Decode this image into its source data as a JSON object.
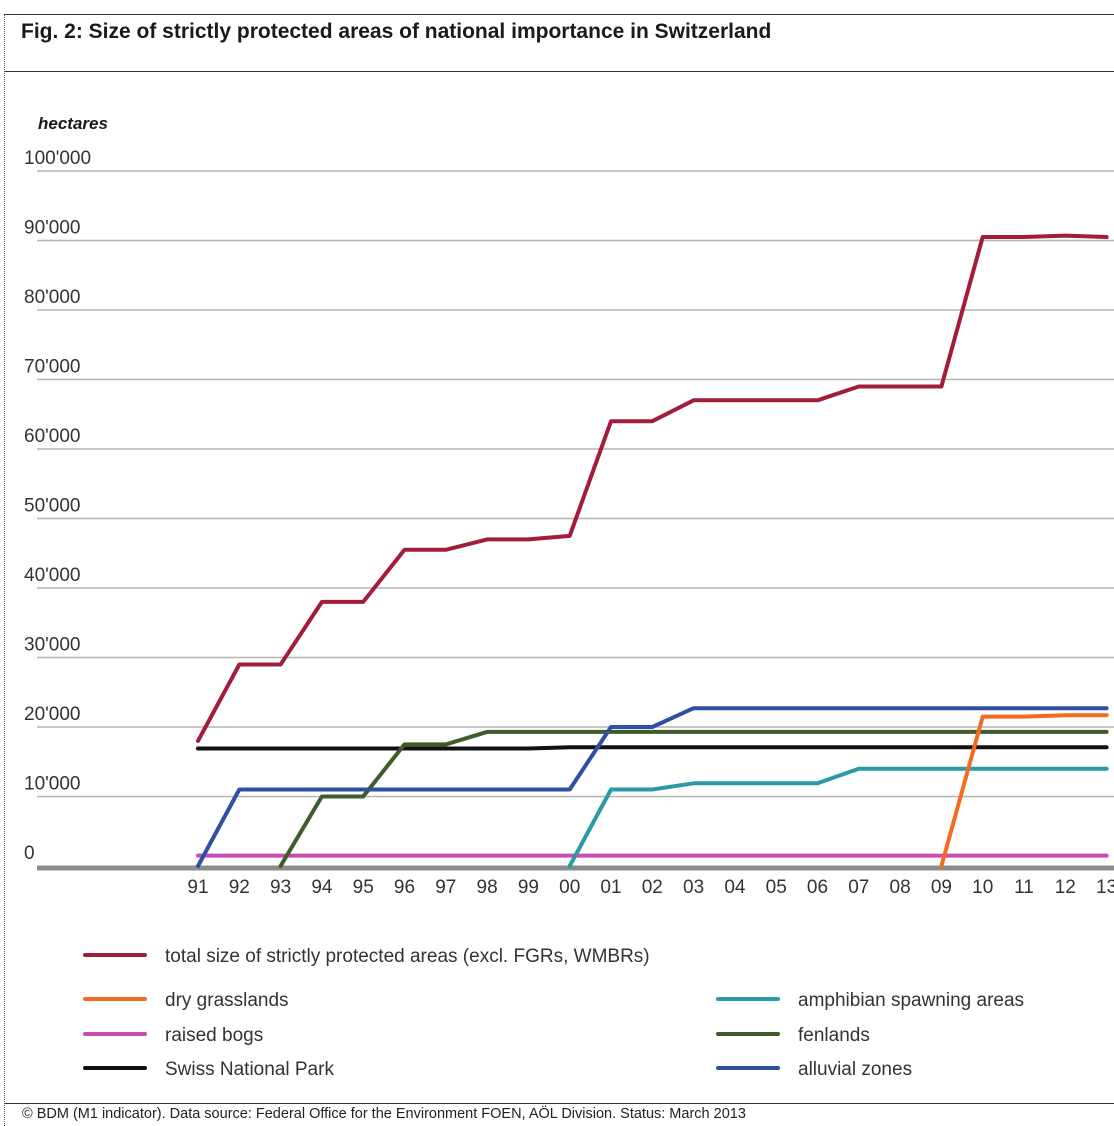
{
  "title": "Fig. 2: Size of strictly protected areas of national importance in Switzerland",
  "footer": "© BDM (M1 indicator). Data source: Federal Office for the Environment FOEN, AÖL Division. Status: March 2013",
  "chart_data": {
    "type": "line",
    "ylabel": "hectares",
    "xlabel": "",
    "ylim": [
      0,
      100000
    ],
    "yticks": [
      "0",
      "10'000",
      "20'000",
      "30'000",
      "40'000",
      "50'000",
      "60'000",
      "70'000",
      "80'000",
      "90'000",
      "100'000"
    ],
    "grid": true,
    "legend_position": "bottom",
    "x": [
      "91",
      "92",
      "93",
      "94",
      "95",
      "96",
      "97",
      "98",
      "99",
      "00",
      "01",
      "02",
      "03",
      "04",
      "05",
      "06",
      "07",
      "08",
      "09",
      "10",
      "11",
      "12",
      "13"
    ],
    "series": [
      {
        "name": "total size of strictly protected areas (excl. FGRs, WMBRs)",
        "color": "#a31c3a",
        "values": [
          18000,
          29000,
          29000,
          38000,
          38000,
          45500,
          45500,
          47000,
          47000,
          47500,
          64000,
          64000,
          67000,
          67000,
          67000,
          67000,
          69000,
          69000,
          69000,
          90500,
          90500,
          90700,
          90500
        ]
      },
      {
        "name": "dry grasslands",
        "color": "#f26b21",
        "values": [
          null,
          null,
          null,
          null,
          null,
          null,
          null,
          null,
          null,
          null,
          null,
          null,
          null,
          null,
          null,
          null,
          null,
          null,
          0,
          21500,
          21500,
          21700,
          21700
        ]
      },
      {
        "name": "raised bogs",
        "color": "#c94bb5",
        "values": [
          1500,
          1500,
          1500,
          1500,
          1500,
          1500,
          1500,
          1500,
          1500,
          1500,
          1500,
          1500,
          1500,
          1500,
          1500,
          1500,
          1500,
          1500,
          1500,
          1500,
          1500,
          1500,
          1500
        ]
      },
      {
        "name": "Swiss National Park",
        "color": "#111111",
        "values": [
          16900,
          16900,
          16900,
          16900,
          16900,
          16900,
          16900,
          16900,
          16900,
          17100,
          17100,
          17100,
          17100,
          17100,
          17100,
          17100,
          17100,
          17100,
          17100,
          17100,
          17100,
          17100,
          17100
        ]
      },
      {
        "name": "amphibian spawning areas",
        "color": "#2a9aa6",
        "values": [
          null,
          null,
          null,
          null,
          null,
          null,
          null,
          null,
          null,
          0,
          11000,
          11000,
          11900,
          11900,
          11900,
          11900,
          14000,
          14000,
          14000,
          14000,
          14000,
          14000,
          14000
        ]
      },
      {
        "name": "fenlands",
        "color": "#3d5c2a",
        "values": [
          null,
          null,
          0,
          10000,
          10000,
          17500,
          17500,
          19300,
          19300,
          19300,
          19300,
          19300,
          19300,
          19300,
          19300,
          19300,
          19300,
          19300,
          19300,
          19300,
          19300,
          19300,
          19300
        ]
      },
      {
        "name": "alluvial zones",
        "color": "#2f4f9f",
        "values": [
          0,
          11000,
          11000,
          11000,
          11000,
          11000,
          11000,
          11000,
          11000,
          11000,
          20000,
          20000,
          22700,
          22700,
          22700,
          22700,
          22700,
          22700,
          22700,
          22700,
          22700,
          22700,
          22700
        ]
      }
    ],
    "legend_order": [
      0,
      1,
      4,
      2,
      5,
      3,
      6
    ]
  }
}
